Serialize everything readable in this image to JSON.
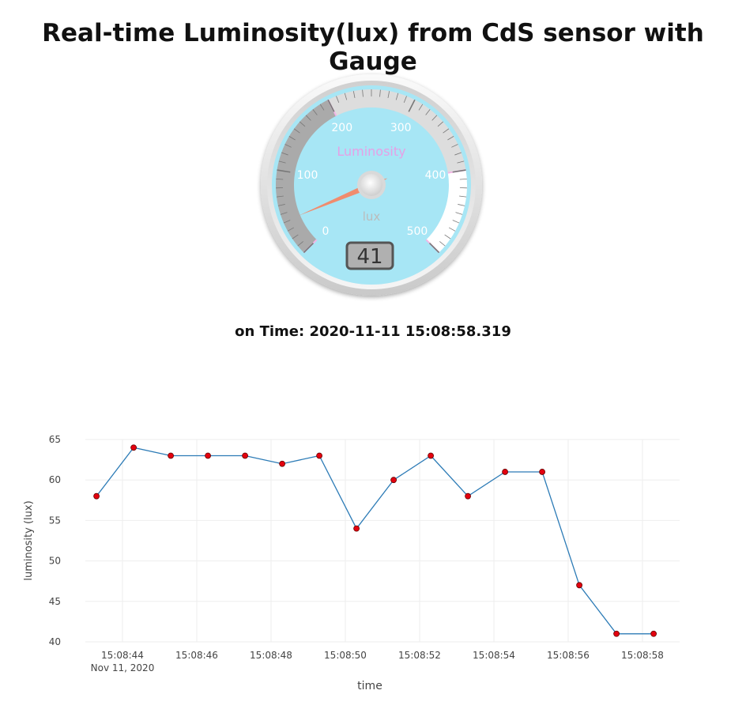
{
  "page": {
    "title": "Real-time Luminosity(lux) from CdS sensor with Gauge",
    "time_prefix": "on Time: ",
    "time_value": "2020-11-11 15:08:58.319"
  },
  "gauge": {
    "title": "Luminosity",
    "units": "lux",
    "min": 0,
    "max": 500,
    "value": 41,
    "value_text": "41",
    "major_ticks": [
      "0",
      "100",
      "200",
      "300",
      "400",
      "500"
    ],
    "highlights": [
      {
        "from": 0,
        "to": 200,
        "color": "#aaaaaa"
      },
      {
        "from": 200,
        "to": 400,
        "color": "#dddddd"
      },
      {
        "from": 400,
        "to": 500,
        "color": "#ffffff"
      }
    ],
    "colors": {
      "plate": "#a7e6f5",
      "needle": "#f08c6e",
      "title": "#e6a0e6",
      "numbers": "#ffffff",
      "units": "#bbbbbb"
    }
  },
  "chart_data": {
    "type": "line",
    "xlabel": "time",
    "ylabel": "luminosity (lux)",
    "xlim": [
      "15:08:43.000",
      "15:08:59.000"
    ],
    "ylim": [
      40,
      65
    ],
    "yticks": [
      40,
      45,
      50,
      55,
      60,
      65
    ],
    "xticks": [
      "15:08:44",
      "15:08:46",
      "15:08:48",
      "15:08:50",
      "15:08:52",
      "15:08:54",
      "15:08:56",
      "15:08:58"
    ],
    "xtick_sublabel": "Nov 11, 2020",
    "grid": true,
    "x": [
      "15:08:43.300",
      "15:08:44.300",
      "15:08:45.300",
      "15:08:46.300",
      "15:08:47.300",
      "15:08:48.300",
      "15:08:49.300",
      "15:08:50.300",
      "15:08:51.300",
      "15:08:52.300",
      "15:08:53.300",
      "15:08:54.300",
      "15:08:55.300",
      "15:08:56.300",
      "15:08:57.300",
      "15:08:58.300"
    ],
    "values": [
      58,
      64,
      63,
      63,
      63,
      62,
      63,
      54,
      60,
      63,
      58,
      61,
      61,
      47,
      41,
      41
    ],
    "colors": {
      "line": "#2c7bb6",
      "marker": "#e3000f",
      "marker_edge": "#660000",
      "grid": "#eeeeee",
      "axis_text": "#444444"
    }
  }
}
